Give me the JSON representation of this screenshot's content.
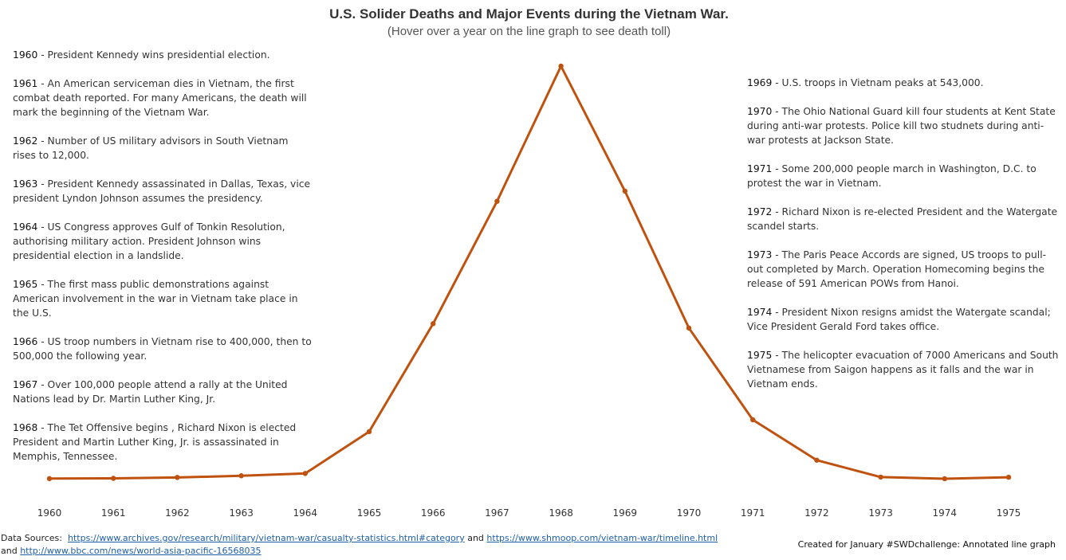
{
  "header": {
    "title": "U.S. Solider Deaths and Major Events during the Vietnam War.",
    "subtitle": "(Hover over a year on the line graph to see death toll)"
  },
  "events_left": [
    {
      "year": "1960",
      "text": " - President Kennedy wins presidential election."
    },
    {
      "year": "1961",
      "text": " - An American serviceman dies in Vietnam, the first combat death reported. For many Americans, the death will mark the beginning of the Vietnam War."
    },
    {
      "year": "1962",
      "text": " - Number of US military advisors in South Vietnam rises to 12,000."
    },
    {
      "year": "1963",
      "text": " - President Kennedy assassinated in Dallas, Texas, vice president Lyndon Johnson assumes the presidency."
    },
    {
      "year": "1964",
      "text": " - US Congress approves Gulf of Tonkin Resolution, authorising military action.  President Johnson wins presidential election in a landslide."
    },
    {
      "year": "1965",
      "text": " - The first mass public demonstrations against American involvement in the war in Vietnam take place in the U.S."
    },
    {
      "year": "1966",
      "text": " - US troop numbers in Vietnam rise to 400,000, then to 500,000 the following year."
    },
    {
      "year": "1967",
      "text": " - Over 100,000 people attend a rally at the United Nations lead by Dr. Martin Luther King, Jr."
    },
    {
      "year": "1968",
      "text": " - The Tet Offensive begins , Richard Nixon is elected President and Martin Luther King, Jr. is assassinated in Memphis, Tennessee."
    }
  ],
  "events_right": [
    {
      "year": "1969",
      "text": " - U.S. troops in Vietnam peaks at 543,000."
    },
    {
      "year": "1970",
      "text": " - The Ohio National Guard kill four students at Kent State during anti-war protests.  Police kill two studnets during anti-war protests at Jackson State."
    },
    {
      "year": "1971",
      "text": " - Some 200,000 people march in Washington, D.C. to protest the war in Vietnam."
    },
    {
      "year": "1972",
      "text": " - Richard Nixon is re-elected President and the Watergate scandel starts."
    },
    {
      "year": "1973",
      "text": " - The Paris Peace Accords are signed, US troops to pull-out completed by March.   Operation Homecoming begins the release of 591 American POWs from Hanoi."
    },
    {
      "year": "1974",
      "text": " - President Nixon resigns amidst the Watergate scandal; Vice President Gerald Ford takes office."
    },
    {
      "year": "1975",
      "text": " -  The helicopter evacuation of 7000 Americans and South Vietnamese from Saigon happens as it falls and the war in Vietnam ends."
    }
  ],
  "footer": {
    "sources_label": "Data Sources:",
    "link1": "https://www.archives.gov/research/military/vietnam-war/casualty-statistics.html#category",
    "and1": " and ",
    "link2": "https://www.shmoop.com/vietnam-war/timeline.html",
    "and2": "and ",
    "link3": "http://www.bbc.com/news/world-asia-pacific-16568035",
    "credit": "Created for January #SWDchallenge: Annotated line graph"
  },
  "chart_data": {
    "type": "line",
    "title": "U.S. Solider Deaths and Major Events during the Vietnam War.",
    "x": [
      "1960",
      "1961",
      "1962",
      "1963",
      "1964",
      "1965",
      "1966",
      "1967",
      "1968",
      "1969",
      "1970",
      "1971",
      "1972",
      "1973",
      "1974",
      "1975"
    ],
    "series": [
      {
        "values": [
          5,
          16,
          53,
          122,
          216,
          1928,
          6350,
          11363,
          16899,
          11780,
          6173,
          2414,
          759,
          68,
          1,
          62
        ]
      }
    ],
    "ylim": [
      0,
      16899
    ],
    "y_axis_shown": false,
    "grid": false,
    "legend": "none",
    "colors": {
      "line": "#c0520f"
    }
  }
}
